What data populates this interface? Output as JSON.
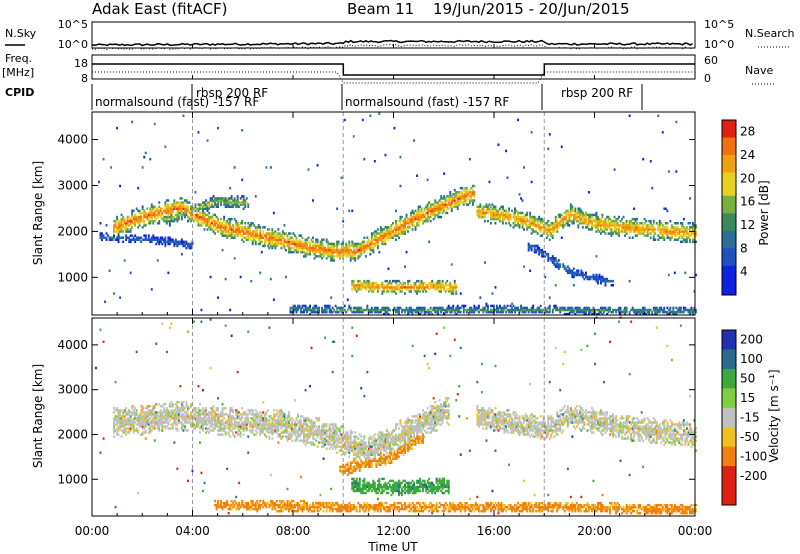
{
  "header": {
    "site": "Adak East (fitACF)",
    "beam": "Beam 11",
    "date_range": "19/Jun/2015 - 20/Jun/2015"
  },
  "params": {
    "nsky_label": "N.Sky",
    "nsearch_label": "N.Search",
    "freq_label": "Freq.",
    "freq_unit": "[MHz]",
    "nave_label": "Nave",
    "cpid_label": "CPID",
    "noise_ticks_left": [
      "10^5",
      "10^0"
    ],
    "noise_ticks_right": [
      "10^5",
      "10^0"
    ],
    "freq_ticks": [
      "18",
      "8"
    ],
    "nave_ticks": [
      "60",
      "0"
    ]
  },
  "cpid_segments": [
    {
      "label": "normalsound (fast) -157 RF",
      "start": 0,
      "end": 4
    },
    {
      "label": "rbsp 200 RF",
      "start": 4,
      "end": 10
    },
    {
      "label": "normalsound (fast) -157 RF",
      "start": 10,
      "end": 18
    },
    {
      "label": "rbsp 200 RF",
      "start": 18,
      "end": 22
    }
  ],
  "chart_data": [
    {
      "type": "heatmap",
      "title": "",
      "xlabel": "Time UT",
      "ylabel": "Slant Range [km]",
      "x_ticks": [
        "00:00",
        "04:00",
        "08:00",
        "12:00",
        "16:00",
        "20:00",
        "00:00"
      ],
      "x_tick_hours": [
        0,
        4,
        8,
        12,
        16,
        20,
        24
      ],
      "xlim": [
        0,
        24
      ],
      "ylim": [
        180,
        4600
      ],
      "y_ticks": [
        1000,
        2000,
        3000,
        4000
      ],
      "colorbar": {
        "label": "Power [dB]",
        "ticks": [
          "28",
          "24",
          "20",
          "16",
          "12",
          "8",
          "4"
        ],
        "tick_values": [
          28,
          24,
          20,
          16,
          12,
          8,
          4
        ],
        "range": [
          0,
          30
        ]
      },
      "scatter_bands": [
        {
          "name": "main",
          "points": [
            [
              1.0,
              2100
            ],
            [
              2.0,
              2300
            ],
            [
              3.5,
              2500
            ],
            [
              5.0,
              2100
            ],
            [
              7.0,
              1850
            ],
            [
              8.5,
              1650
            ],
            [
              9.6,
              1550
            ],
            [
              10.5,
              1550
            ],
            [
              11.5,
              1850
            ],
            [
              12.8,
              2250
            ],
            [
              14.0,
              2550
            ],
            [
              15.0,
              2800
            ]
          ],
          "width": 230,
          "peak_db": 27
        },
        {
          "name": "arc-morning",
          "points": [
            [
              3.0,
              2250
            ],
            [
              4.0,
              2450
            ],
            [
              5.0,
              2650
            ],
            [
              6.0,
              2600
            ]
          ],
          "width": 150,
          "peak_db": 18
        },
        {
          "name": "low-01",
          "points": [
            [
              0.5,
              1850
            ],
            [
              2.5,
              1800
            ],
            [
              3.8,
              1700
            ]
          ],
          "width": 90,
          "peak_db": 10
        },
        {
          "name": "ionos",
          "points": [
            [
              10.5,
              800
            ],
            [
              12.0,
              760
            ],
            [
              13.5,
              790
            ],
            [
              14.3,
              760
            ]
          ],
          "width": 150,
          "peak_db": 26
        },
        {
          "name": "evening",
          "points": [
            [
              15.5,
              2400
            ],
            [
              17.0,
              2250
            ],
            [
              18.2,
              2000
            ],
            [
              19.0,
              2350
            ],
            [
              20.0,
              2150
            ],
            [
              21.5,
              2050
            ],
            [
              23.8,
              1950
            ]
          ],
          "width": 220,
          "peak_db": 25
        },
        {
          "name": "evening-lower",
          "points": [
            [
              17.5,
              1650
            ],
            [
              19.0,
              1100
            ],
            [
              20.5,
              900
            ]
          ],
          "width": 100,
          "peak_db": 10
        },
        {
          "name": "near",
          "points": [
            [
              8.0,
              300
            ],
            [
              12.0,
              260
            ],
            [
              16.0,
              280
            ],
            [
              24.0,
              250
            ]
          ],
          "width": 90,
          "peak_db": 14
        }
      ]
    },
    {
      "type": "heatmap",
      "title": "",
      "xlabel": "Time UT",
      "ylabel": "Slant Range [km]",
      "x_ticks": [
        "00:00",
        "04:00",
        "08:00",
        "12:00",
        "16:00",
        "20:00",
        "00:00"
      ],
      "x_tick_hours": [
        0,
        4,
        8,
        12,
        16,
        20,
        24
      ],
      "xlim": [
        0,
        24
      ],
      "ylim": [
        180,
        4600
      ],
      "y_ticks": [
        1000,
        2000,
        3000,
        4000
      ],
      "colorbar": {
        "label": "Velocity [m s^-1]",
        "ticks": [
          "200",
          "100",
          "50",
          "15",
          "-15",
          "-50",
          "-100",
          "-200"
        ],
        "tick_values": [
          200,
          100,
          50,
          15,
          -15,
          -50,
          -100,
          -200
        ],
        "range": [
          -250,
          250
        ]
      },
      "scatter_bands": [
        {
          "name": "main",
          "points": [
            [
              1.0,
              2250
            ],
            [
              3.5,
              2400
            ],
            [
              5.5,
              2250
            ],
            [
              7.5,
              2200
            ],
            [
              9.5,
              1950
            ],
            [
              11.0,
              1600
            ],
            [
              12.5,
              2000
            ],
            [
              14.0,
              2500
            ]
          ],
          "width": 330,
          "velocity": 0
        },
        {
          "name": "ionos",
          "points": [
            [
              10.5,
              850
            ],
            [
              12.0,
              800
            ],
            [
              14.0,
              820
            ]
          ],
          "width": 180,
          "velocity": 60
        },
        {
          "name": "low-mid",
          "points": [
            [
              10.0,
              1200
            ],
            [
              12.0,
              1500
            ],
            [
              13.0,
              1900
            ]
          ],
          "width": 150,
          "velocity": -60
        },
        {
          "name": "evening",
          "points": [
            [
              15.5,
              2350
            ],
            [
              18.0,
              2100
            ],
            [
              19.0,
              2400
            ],
            [
              21.0,
              2150
            ],
            [
              24.0,
              1950
            ]
          ],
          "width": 280,
          "velocity": 0
        },
        {
          "name": "near",
          "points": [
            [
              5.0,
              400
            ],
            [
              12.0,
              350
            ],
            [
              20.0,
              350
            ],
            [
              24.0,
              300
            ]
          ],
          "width": 120,
          "velocity": -60
        }
      ]
    }
  ]
}
